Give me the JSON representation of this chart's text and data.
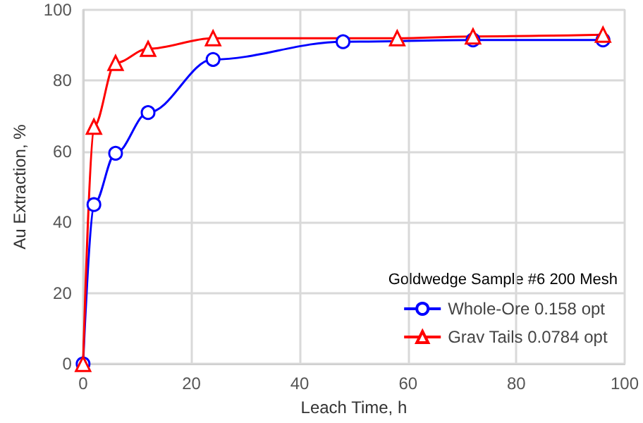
{
  "chart_data": {
    "type": "line",
    "xlabel": "Leach Time, h",
    "ylabel": "Au Extraction, %",
    "legend_title": "Goldwedge Sample #6 200 Mesh",
    "legend": "bottom right",
    "grid": true,
    "line_style": "solid",
    "xlim": [
      0,
      100
    ],
    "xticks": [
      0,
      20,
      40,
      60,
      80,
      100
    ],
    "ylim": [
      0,
      100
    ],
    "yticks": [
      0,
      20,
      40,
      60,
      80,
      100
    ],
    "series": [
      {
        "name": "Whole-Ore 0.158 opt",
        "color": "#0000ff",
        "marker": "circle",
        "x": [
          0,
          2,
          6,
          12,
          24,
          48,
          72,
          96
        ],
        "values": [
          0,
          45,
          59.5,
          71,
          86,
          91,
          91.5,
          91.5
        ]
      },
      {
        "name": "Grav Tails 0.0784 opt",
        "color": "#ff0000",
        "marker": "triangle",
        "x": [
          0,
          2,
          6,
          12,
          24,
          58,
          72,
          96
        ],
        "values": [
          0,
          67,
          85,
          89,
          92,
          92,
          92.5,
          93
        ]
      }
    ]
  }
}
